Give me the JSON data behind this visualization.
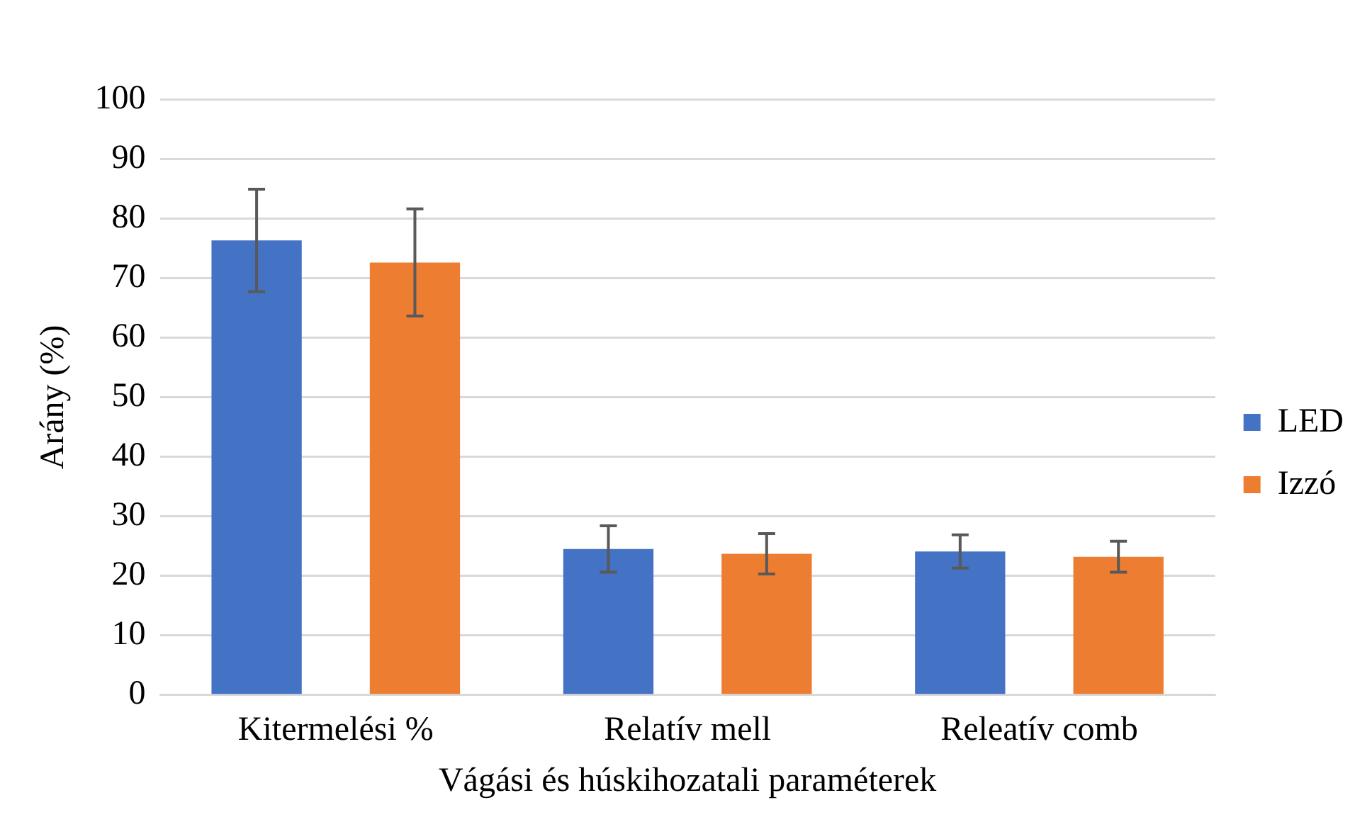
{
  "chart_data": {
    "type": "bar",
    "xlabel": "Vágási és húskihozatali paraméterek",
    "ylabel": "Arány (%)",
    "categories": [
      "Kitermelési %",
      "Relatív mell",
      "Releatív comb"
    ],
    "series": [
      {
        "name": "LED",
        "color": "#4472c4",
        "values": [
          76.3,
          24.5,
          24.1
        ],
        "errors": [
          8.6,
          3.9,
          2.8
        ]
      },
      {
        "name": "Izzó",
        "color": "#ed7d31",
        "values": [
          72.6,
          23.7,
          23.2
        ],
        "errors": [
          9.0,
          3.4,
          2.6
        ]
      }
    ],
    "ylim": [
      0,
      100
    ],
    "yticks": [
      0,
      10,
      20,
      30,
      40,
      50,
      60,
      70,
      80,
      90,
      100
    ],
    "grid": "y",
    "legend": "right"
  }
}
